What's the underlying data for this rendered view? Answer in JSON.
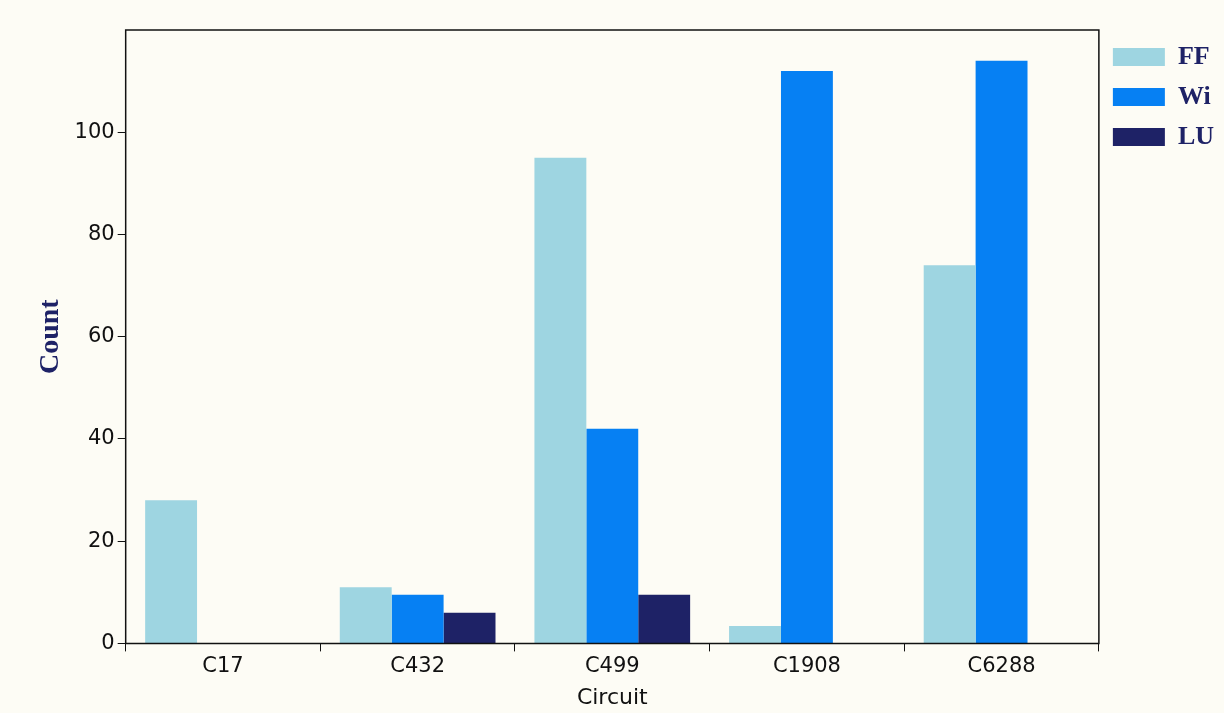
{
  "chart_data": {
    "type": "bar",
    "xlabel": "Circuit",
    "ylabel": "Count",
    "categories": [
      "C17",
      "C432",
      "C499",
      "C1908",
      "C6288"
    ],
    "series": [
      {
        "name": "FF",
        "color": "#9ed5e1",
        "values": [
          28,
          11,
          95,
          3.4,
          74
        ]
      },
      {
        "name": "Wi",
        "color": "#0680f3",
        "values": [
          0,
          9.5,
          42,
          112,
          114
        ]
      },
      {
        "name": "LU",
        "color": "#1e2266",
        "values": [
          0,
          6,
          9.5,
          0,
          0
        ]
      }
    ],
    "ylim": [
      0,
      120
    ],
    "yticks": [
      0,
      20,
      40,
      60,
      80,
      100
    ],
    "grid": false,
    "legend": "top right"
  }
}
